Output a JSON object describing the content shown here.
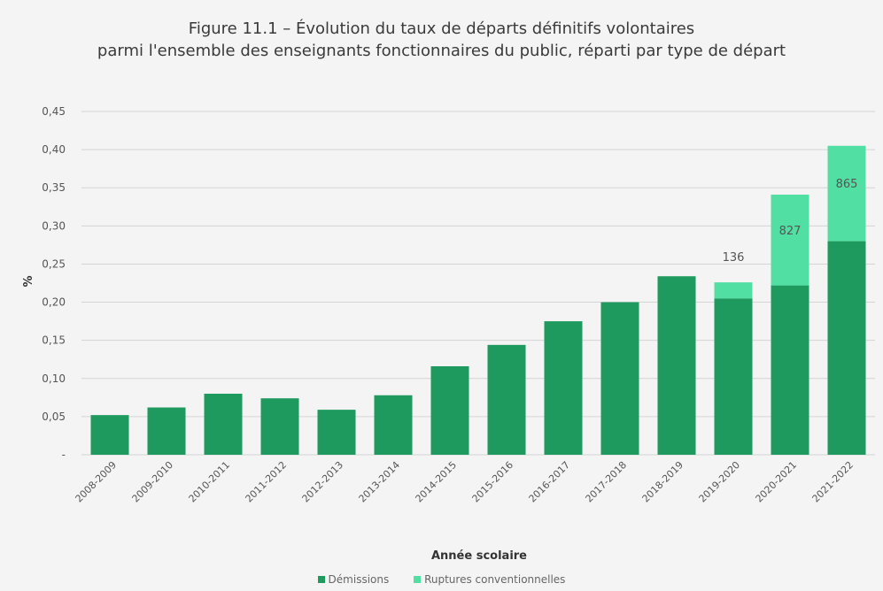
{
  "chart_data": {
    "type": "bar",
    "stacked": true,
    "title": "Figure 11.1 – Évolution du taux de départs définitifs volontaires",
    "subtitle": "parmi l'ensemble des enseignants fonctionnaires du public, réparti par type de départ",
    "xlabel": "Année scolaire",
    "ylabel": "%",
    "ylim": [
      0,
      0.45
    ],
    "yticks": [
      0,
      0.05,
      0.1,
      0.15,
      0.2,
      0.25,
      0.3,
      0.35,
      0.4,
      0.45
    ],
    "ytick_labels": [
      "-",
      "0,05",
      "0,10",
      "0,15",
      "0,20",
      "0,25",
      "0,30",
      "0,35",
      "0,40",
      "0,45"
    ],
    "grid": true,
    "legend_position": "bottom",
    "categories": [
      "2008-2009",
      "2009-2010",
      "2010-2011",
      "2011-2012",
      "2012-2013",
      "2013-2014",
      "2014-2015",
      "2015-2016",
      "2016-2017",
      "2017-2018",
      "2018-2019",
      "2019-2020",
      "2020-2021",
      "2021-2022"
    ],
    "series": [
      {
        "name": "Démissions",
        "color": "#1e9a5f",
        "values": [
          0.052,
          0.062,
          0.08,
          0.074,
          0.059,
          0.078,
          0.116,
          0.144,
          0.175,
          0.2,
          0.234,
          0.205,
          0.222,
          0.28
        ]
      },
      {
        "name": "Ruptures conventionnelles",
        "color": "#52dfa3",
        "values": [
          0,
          0,
          0,
          0,
          0,
          0,
          0,
          0,
          0,
          0,
          0,
          0.021,
          0.119,
          0.125
        ]
      }
    ],
    "annotations": [
      {
        "category": "2019-2020",
        "text": "136",
        "placement": "above"
      },
      {
        "category": "2020-2021",
        "text": "827",
        "placement": "inside"
      },
      {
        "category": "2021-2022",
        "text": "865",
        "placement": "inside"
      }
    ]
  }
}
